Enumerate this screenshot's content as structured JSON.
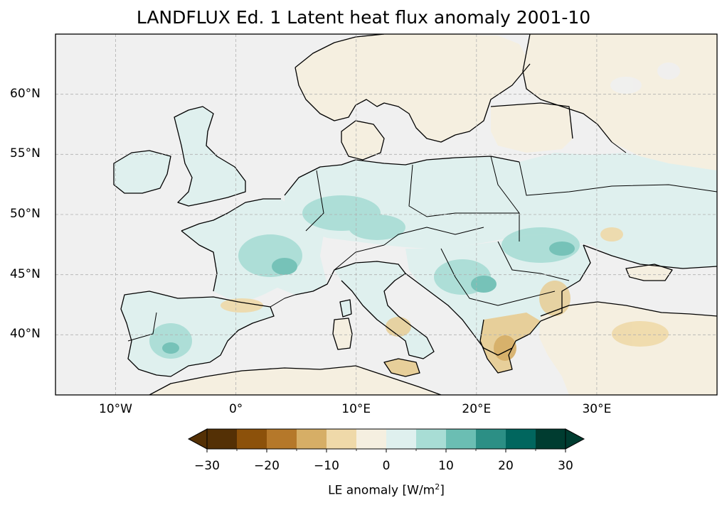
{
  "title": "LANDFLUX Ed. 1 Latent heat flux anomaly 2001-10",
  "map": {
    "region": "Europe",
    "projection": "PlateCarree",
    "extent": {
      "lon_min": -15,
      "lon_max": 40,
      "lat_min": 35,
      "lat_max": 65
    },
    "gridlines": true,
    "lat_ticks": [
      {
        "value": 60,
        "label": "60°N"
      },
      {
        "value": 55,
        "label": "55°N"
      },
      {
        "value": 50,
        "label": "50°N"
      },
      {
        "value": 45,
        "label": "45°N"
      },
      {
        "value": 40,
        "label": "40°N"
      }
    ],
    "lon_ticks": [
      {
        "value": -10,
        "label": "10°W"
      },
      {
        "value": 0,
        "label": "0°"
      },
      {
        "value": 10,
        "label": "10°E"
      },
      {
        "value": 20,
        "label": "20°E"
      },
      {
        "value": 30,
        "label": "30°E"
      }
    ],
    "colors": {
      "ocean": "#f0f0f0",
      "coast": "#000000",
      "grid": "#b0b0b0"
    }
  },
  "colorbar": {
    "label": "LE anomaly [W/m²]",
    "label_prefix": "LE anomaly [W/m",
    "label_sup": "2",
    "label_suffix": "]",
    "min": -30,
    "max": 30,
    "step": 5,
    "extend": "both",
    "tick_labels": [
      "−30",
      "−20",
      "−10",
      "0",
      "10",
      "20",
      "30"
    ],
    "tick_values": [
      -30,
      -20,
      -10,
      0,
      10,
      20,
      30
    ],
    "colors": [
      "#543005",
      "#8c510a",
      "#bf812d",
      "#dfc27d",
      "#f6e8c3",
      "#f5f5f5",
      "#c7eae5",
      "#80cdc1",
      "#35978f",
      "#01665e",
      "#003c30",
      "#003c30"
    ],
    "bins": [
      {
        "from": -30,
        "to": -25,
        "color": "#543005"
      },
      {
        "from": -25,
        "to": -20,
        "color": "#8c510a"
      },
      {
        "from": -20,
        "to": -15,
        "color": "#b5782a"
      },
      {
        "from": -15,
        "to": -10,
        "color": "#d6ae66"
      },
      {
        "from": -10,
        "to": -5,
        "color": "#efd9a9"
      },
      {
        "from": -5,
        "to": 0,
        "color": "#f5efe0"
      },
      {
        "from": 0,
        "to": 5,
        "color": "#dff0ee"
      },
      {
        "from": 5,
        "to": 10,
        "color": "#a8ddd5"
      },
      {
        "from": 10,
        "to": 15,
        "color": "#6bbeb3"
      },
      {
        "from": 15,
        "to": 20,
        "color": "#2c8f85"
      },
      {
        "from": 20,
        "to": 25,
        "color": "#01665e"
      },
      {
        "from": 25,
        "to": 30,
        "color": "#003c30"
      }
    ],
    "under_color": "#543005",
    "over_color": "#003c30"
  }
}
